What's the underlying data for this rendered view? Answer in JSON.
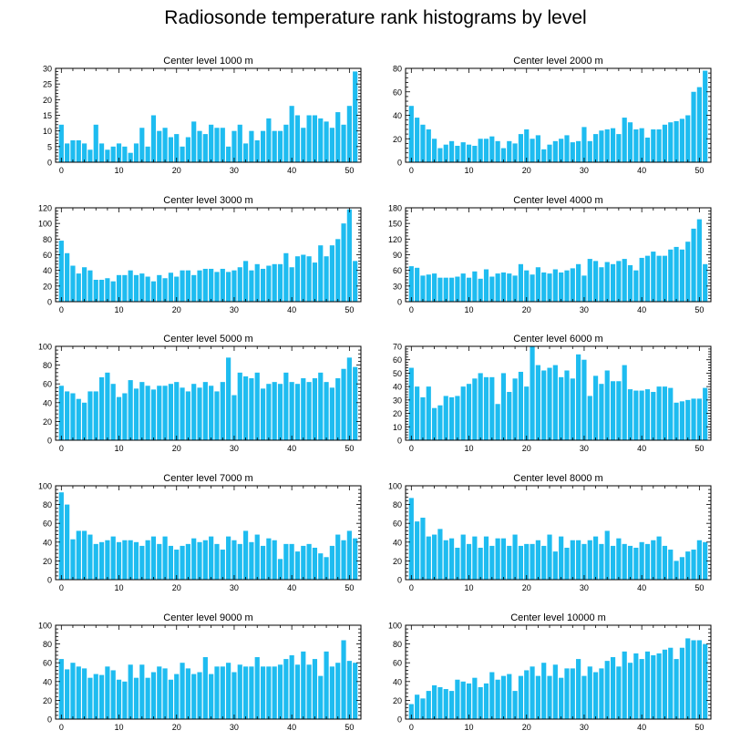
{
  "title": "Radiosonde temperature rank histograms by level",
  "colors": {
    "bar": "#1ebcf0",
    "axis": "#000000"
  },
  "chart_data": [
    {
      "type": "bar",
      "title": "Center level 1000 m",
      "ylim": [
        0,
        30
      ],
      "yticks": [
        0,
        5,
        10,
        15,
        20,
        25,
        30
      ],
      "xlim": [
        -1,
        52
      ],
      "xticks": [
        0,
        10,
        20,
        30,
        40,
        50
      ],
      "values": [
        12,
        6,
        7,
        7,
        6,
        4,
        12,
        6,
        4,
        5,
        6,
        5,
        3,
        6,
        11,
        5,
        15,
        10,
        11,
        8,
        9,
        5,
        8,
        13,
        10,
        9,
        12,
        11,
        11,
        5,
        10,
        12,
        6,
        10,
        7,
        10,
        14,
        10,
        10,
        12,
        18,
        15,
        11,
        15,
        15,
        14,
        13,
        11,
        16,
        12,
        18,
        29
      ]
    },
    {
      "type": "bar",
      "title": "Center level 2000 m",
      "ylim": [
        0,
        80
      ],
      "yticks": [
        0,
        20,
        40,
        60,
        80
      ],
      "xlim": [
        -1,
        52
      ],
      "xticks": [
        0,
        10,
        20,
        30,
        40,
        50
      ],
      "values": [
        48,
        38,
        32,
        28,
        20,
        12,
        15,
        18,
        14,
        17,
        15,
        14,
        20,
        20,
        22,
        18,
        12,
        18,
        16,
        24,
        28,
        20,
        23,
        11,
        15,
        18,
        20,
        23,
        17,
        18,
        30,
        18,
        24,
        27,
        28,
        29,
        24,
        38,
        34,
        28,
        29,
        21,
        28,
        28,
        32,
        34,
        35,
        37,
        40,
        60,
        64,
        78
      ]
    },
    {
      "type": "bar",
      "title": "Center level 3000 m",
      "ylim": [
        0,
        120
      ],
      "yticks": [
        0,
        20,
        40,
        60,
        80,
        100,
        120
      ],
      "xlim": [
        -1,
        52
      ],
      "xticks": [
        0,
        10,
        20,
        30,
        40,
        50
      ],
      "values": [
        78,
        62,
        46,
        36,
        44,
        40,
        28,
        28,
        30,
        26,
        34,
        34,
        40,
        34,
        36,
        32,
        26,
        34,
        30,
        37,
        32,
        40,
        40,
        34,
        40,
        42,
        42,
        38,
        42,
        38,
        40,
        44,
        52,
        40,
        48,
        42,
        46,
        48,
        48,
        62,
        44,
        58,
        60,
        58,
        50,
        72,
        58,
        72,
        80,
        100,
        118,
        52
      ]
    },
    {
      "type": "bar",
      "title": "Center level 4000 m",
      "ylim": [
        0,
        180
      ],
      "yticks": [
        0,
        30,
        60,
        90,
        120,
        150,
        180
      ],
      "xlim": [
        -1,
        52
      ],
      "xticks": [
        0,
        10,
        20,
        30,
        40,
        50
      ],
      "values": [
        68,
        65,
        50,
        52,
        54,
        46,
        46,
        46,
        48,
        54,
        46,
        58,
        44,
        62,
        48,
        54,
        56,
        54,
        50,
        72,
        60,
        52,
        66,
        56,
        54,
        62,
        56,
        60,
        64,
        72,
        50,
        82,
        78,
        66,
        76,
        72,
        78,
        82,
        70,
        60,
        84,
        88,
        96,
        88,
        88,
        100,
        105,
        100,
        115,
        140,
        158,
        72
      ]
    },
    {
      "type": "bar",
      "title": "Center level 5000 m",
      "ylim": [
        0,
        100
      ],
      "yticks": [
        0,
        20,
        40,
        60,
        80,
        100
      ],
      "xlim": [
        -1,
        52
      ],
      "xticks": [
        0,
        10,
        20,
        30,
        40,
        50
      ],
      "values": [
        58,
        52,
        50,
        44,
        40,
        52,
        52,
        67,
        72,
        60,
        46,
        50,
        64,
        55,
        62,
        58,
        54,
        58,
        58,
        60,
        62,
        56,
        52,
        60,
        56,
        62,
        58,
        52,
        62,
        88,
        48,
        72,
        68,
        66,
        72,
        55,
        60,
        62,
        60,
        72,
        62,
        60,
        66,
        62,
        66,
        72,
        62,
        56,
        66,
        76,
        88,
        78
      ]
    },
    {
      "type": "bar",
      "title": "Center level 6000 m",
      "ylim": [
        0,
        70
      ],
      "yticks": [
        0,
        10,
        20,
        30,
        40,
        50,
        60,
        70
      ],
      "xlim": [
        -1,
        52
      ],
      "xticks": [
        0,
        10,
        20,
        30,
        40,
        50
      ],
      "values": [
        54,
        40,
        32,
        40,
        24,
        26,
        33,
        32,
        33,
        40,
        42,
        46,
        50,
        47,
        47,
        27,
        50,
        36,
        46,
        51,
        40,
        70,
        56,
        52,
        54,
        56,
        47,
        52,
        46,
        64,
        60,
        33,
        48,
        42,
        52,
        44,
        44,
        56,
        38,
        37,
        37,
        38,
        36,
        40,
        40,
        39,
        28,
        29,
        30,
        31,
        31,
        39
      ]
    },
    {
      "type": "bar",
      "title": "Center level 7000 m",
      "ylim": [
        0,
        100
      ],
      "yticks": [
        0,
        20,
        40,
        60,
        80,
        100
      ],
      "xlim": [
        -1,
        52
      ],
      "xticks": [
        0,
        10,
        20,
        30,
        40,
        50
      ],
      "values": [
        93,
        80,
        43,
        52,
        52,
        48,
        38,
        40,
        42,
        46,
        40,
        42,
        42,
        40,
        36,
        42,
        46,
        38,
        46,
        36,
        32,
        36,
        38,
        44,
        40,
        42,
        46,
        38,
        32,
        46,
        42,
        38,
        52,
        40,
        48,
        36,
        44,
        42,
        22,
        38,
        38,
        30,
        36,
        38,
        34,
        28,
        24,
        36,
        48,
        42,
        52,
        44
      ]
    },
    {
      "type": "bar",
      "title": "Center level 8000 m",
      "ylim": [
        0,
        100
      ],
      "yticks": [
        0,
        20,
        40,
        60,
        80,
        100
      ],
      "xlim": [
        -1,
        52
      ],
      "xticks": [
        0,
        10,
        20,
        30,
        40,
        50
      ],
      "values": [
        87,
        62,
        66,
        46,
        48,
        54,
        42,
        44,
        34,
        48,
        38,
        46,
        34,
        46,
        36,
        44,
        44,
        36,
        48,
        36,
        38,
        38,
        42,
        36,
        48,
        30,
        46,
        34,
        42,
        42,
        38,
        42,
        46,
        38,
        52,
        36,
        44,
        38,
        36,
        34,
        40,
        38,
        42,
        46,
        36,
        32,
        20,
        24,
        30,
        32,
        42,
        40
      ]
    },
    {
      "type": "bar",
      "title": "Center level 9000 m",
      "ylim": [
        0,
        100
      ],
      "yticks": [
        0,
        20,
        40,
        60,
        80,
        100
      ],
      "xlim": [
        -1,
        52
      ],
      "xticks": [
        0,
        10,
        20,
        30,
        40,
        50
      ],
      "values": [
        64,
        53,
        60,
        56,
        54,
        44,
        48,
        47,
        56,
        52,
        42,
        40,
        58,
        44,
        58,
        44,
        50,
        56,
        54,
        42,
        48,
        60,
        54,
        48,
        50,
        66,
        48,
        56,
        56,
        60,
        50,
        58,
        56,
        56,
        66,
        56,
        56,
        56,
        58,
        64,
        68,
        58,
        72,
        58,
        64,
        46,
        72,
        56,
        60,
        84,
        62,
        60
      ]
    },
    {
      "type": "bar",
      "title": "Center level 10000 m",
      "ylim": [
        0,
        100
      ],
      "yticks": [
        0,
        20,
        40,
        60,
        80,
        100
      ],
      "xlim": [
        -1,
        52
      ],
      "xticks": [
        0,
        10,
        20,
        30,
        40,
        50
      ],
      "values": [
        16,
        26,
        22,
        30,
        36,
        34,
        32,
        30,
        42,
        40,
        38,
        44,
        34,
        38,
        50,
        42,
        46,
        48,
        30,
        46,
        52,
        56,
        46,
        60,
        46,
        58,
        44,
        54,
        54,
        64,
        46,
        56,
        50,
        54,
        62,
        66,
        56,
        72,
        60,
        70,
        64,
        72,
        68,
        70,
        74,
        76,
        64,
        76,
        86,
        84,
        84,
        80
      ]
    }
  ]
}
